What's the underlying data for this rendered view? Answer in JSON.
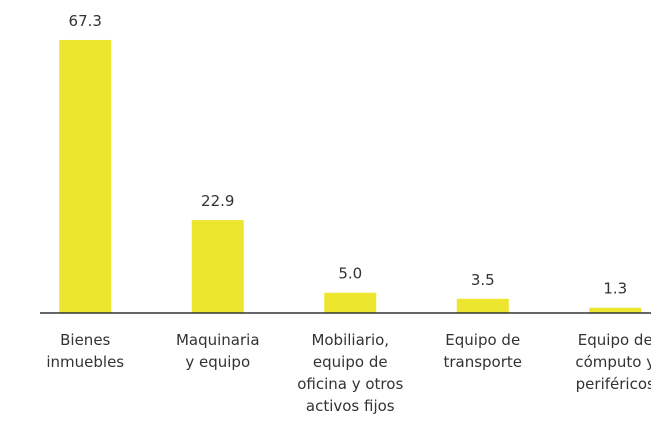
{
  "chart_data": {
    "type": "bar",
    "categories": [
      "Bienes\ninmuebles",
      "Maquinaria\ny equipo",
      "Mobiliario,\nequipo de\noficina y otros\nactivos fijos",
      "Equipo de\ntransporte",
      "Equipo de\ncómputo y\nperiféricos"
    ],
    "values": [
      67.3,
      22.9,
      5.0,
      3.5,
      1.3
    ],
    "value_labels": [
      "67.3",
      "22.9",
      "5.0",
      "3.5",
      "1.3"
    ],
    "color": "#ece62e",
    "ylim": [
      0,
      70
    ]
  }
}
